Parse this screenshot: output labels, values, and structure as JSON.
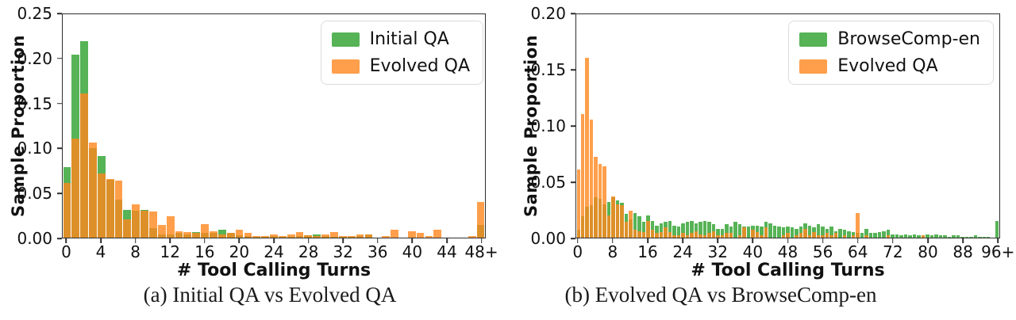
{
  "colors": {
    "green_series": "#2ca02c",
    "orange_series": "#ff7f0e",
    "green_css": "rgba(44,160,44,0.8)",
    "orange_css": "rgba(255,135,30,0.8)",
    "spine": "#2e2e2e",
    "background": "#ffffff"
  },
  "chart_data": [
    {
      "id": "chart-a",
      "type": "bar",
      "subtype": "overlaid-histogram",
      "caption": "(a) Initial QA vs Evolved QA",
      "xlabel": "# Tool Calling Turns",
      "ylabel": "Sample Proportion",
      "ylim": [
        0,
        0.25
      ],
      "grid": false,
      "legend_position": "upper right",
      "yticks": [
        {
          "v": 0.0,
          "label": "0.00"
        },
        {
          "v": 0.05,
          "label": "0.05"
        },
        {
          "v": 0.1,
          "label": "0.10"
        },
        {
          "v": 0.15,
          "label": "0.15"
        },
        {
          "v": 0.2,
          "label": "0.20"
        },
        {
          "v": 0.25,
          "label": "0.25"
        }
      ],
      "xticks": [
        {
          "v": 0,
          "label": "0"
        },
        {
          "v": 4,
          "label": "4"
        },
        {
          "v": 8,
          "label": "8"
        },
        {
          "v": 12,
          "label": "12"
        },
        {
          "v": 16,
          "label": "16"
        },
        {
          "v": 20,
          "label": "20"
        },
        {
          "v": 24,
          "label": "24"
        },
        {
          "v": 28,
          "label": "28"
        },
        {
          "v": 32,
          "label": "32"
        },
        {
          "v": 36,
          "label": "36"
        },
        {
          "v": 40,
          "label": "40"
        },
        {
          "v": 44,
          "label": "44"
        },
        {
          "v": 48,
          "label": "48+"
        }
      ],
      "bin_start": 0,
      "bin_width": 1,
      "series": [
        {
          "name": "Initial QA",
          "color": "#2ca02c",
          "css": "rgba(44,160,44,0.8)",
          "values": [
            0.079,
            0.205,
            0.22,
            0.1,
            0.091,
            0.065,
            0.043,
            0.031,
            0.03,
            0.031,
            0.011,
            0.004,
            0.004,
            0.005,
            0.004,
            0.006,
            0.005,
            0.005,
            0.009,
            0.005,
            0.003,
            0.002,
            0.001,
            0.001,
            0.002,
            0.001,
            0.001,
            0.002,
            0.003,
            0.004,
            0.002,
            0.001,
            0.001,
            0.001,
            0.002,
            0.004,
            0,
            0,
            0,
            0,
            0,
            0,
            0,
            0,
            0,
            0,
            0,
            0,
            0.014
          ]
        },
        {
          "name": "Evolved QA",
          "color": "#ff7f0e",
          "css": "rgba(255,135,30,0.8)",
          "values": [
            0.061,
            0.111,
            0.161,
            0.106,
            0.072,
            0.066,
            0.064,
            0.02,
            0.037,
            0.03,
            0.029,
            0.014,
            0.024,
            0.007,
            0.006,
            0.005,
            0.015,
            0.007,
            0.004,
            0.005,
            0.009,
            0.005,
            0.002,
            0.002,
            0.004,
            0.002,
            0.004,
            0.006,
            0.003,
            0.002,
            0.004,
            0.006,
            0.002,
            0.002,
            0.004,
            0.004,
            0,
            0.002,
            0.009,
            0,
            0.007,
            0.005,
            0.002,
            0.009,
            0,
            0,
            0,
            0.002,
            0.04
          ]
        }
      ]
    },
    {
      "id": "chart-b",
      "type": "bar",
      "subtype": "overlaid-histogram",
      "caption": "(b) Evolved QA vs BrowseComp-en",
      "xlabel": "# Tool Calling Turns",
      "ylabel": "Sample Proportion",
      "ylim": [
        0,
        0.2
      ],
      "grid": false,
      "legend_position": "upper right",
      "yticks": [
        {
          "v": 0.0,
          "label": "0.00"
        },
        {
          "v": 0.05,
          "label": "0.05"
        },
        {
          "v": 0.1,
          "label": "0.10"
        },
        {
          "v": 0.15,
          "label": "0.15"
        },
        {
          "v": 0.2,
          "label": "0.20"
        }
      ],
      "xticks": [
        {
          "v": 0,
          "label": "0"
        },
        {
          "v": 8,
          "label": "8"
        },
        {
          "v": 16,
          "label": "16"
        },
        {
          "v": 24,
          "label": "24"
        },
        {
          "v": 32,
          "label": "32"
        },
        {
          "v": 40,
          "label": "40"
        },
        {
          "v": 48,
          "label": "48"
        },
        {
          "v": 56,
          "label": "56"
        },
        {
          "v": 64,
          "label": "64"
        },
        {
          "v": 72,
          "label": "72"
        },
        {
          "v": 80,
          "label": "80"
        },
        {
          "v": 88,
          "label": "88"
        },
        {
          "v": 96,
          "label": "96+"
        }
      ],
      "bin_start": 0,
      "bin_width": 1,
      "series": [
        {
          "name": "BrowseComp-en",
          "color": "#2ca02c",
          "css": "rgba(44,160,44,0.8)",
          "values": [
            0.007,
            0.019,
            0.028,
            0.029,
            0.036,
            0.035,
            0.03,
            0.032,
            0.036,
            0.033,
            0.031,
            0.021,
            0.016,
            0.022,
            0.019,
            0.014,
            0.02,
            0.015,
            0.011,
            0.013,
            0.014,
            0.015,
            0.011,
            0.01,
            0.013,
            0.014,
            0.015,
            0.013,
            0.014,
            0.015,
            0.014,
            0.012,
            0.008,
            0.008,
            0.012,
            0.01,
            0.014,
            0.012,
            0.01,
            0.01,
            0.011,
            0.011,
            0.01,
            0.014,
            0.013,
            0.011,
            0.01,
            0.009,
            0.01,
            0.009,
            0.008,
            0.01,
            0.013,
            0.011,
            0.009,
            0.012,
            0.01,
            0.008,
            0.01,
            0.006,
            0.008,
            0.007,
            0.006,
            0.005,
            0.004,
            0.004,
            0.008,
            0.004,
            0.004,
            0.005,
            0.006,
            0.007,
            0.003,
            0.003,
            0.002,
            0.003,
            0.002,
            0.003,
            0.002,
            0.002,
            0.003,
            0.002,
            0.003,
            0.002,
            0.002,
            0.001,
            0.002,
            0.002,
            0.001,
            0.001,
            0.001,
            0.002,
            0.001,
            0.001,
            0.001,
            0,
            0.015
          ]
        },
        {
          "name": "Evolved QA",
          "color": "#ff7f0e",
          "css": "rgba(255,135,30,0.8)",
          "values": [
            0.061,
            0.111,
            0.161,
            0.106,
            0.072,
            0.066,
            0.064,
            0.02,
            0.037,
            0.03,
            0.029,
            0.014,
            0.024,
            0.007,
            0.006,
            0.005,
            0.015,
            0.007,
            0.004,
            0.005,
            0.009,
            0.005,
            0.002,
            0.002,
            0.004,
            0.002,
            0.004,
            0.006,
            0.003,
            0.002,
            0.004,
            0.006,
            0.002,
            0.002,
            0.004,
            0.004,
            0,
            0.002,
            0.009,
            0,
            0.007,
            0.005,
            0.002,
            0.009,
            0,
            0,
            0,
            0.002,
            0.004,
            0,
            0.002,
            0.004,
            0.008,
            0.002,
            0.005,
            0.002,
            0.002,
            0.004,
            0.002,
            0.004,
            0,
            0.002,
            0,
            0.002,
            0.022,
            0,
            0.002,
            0,
            0,
            0,
            0,
            0.002,
            0,
            0,
            0,
            0,
            0,
            0,
            0,
            0.002,
            0,
            0,
            0,
            0,
            0,
            0,
            0,
            0,
            0,
            0,
            0,
            0,
            0,
            0,
            0,
            0,
            0
          ]
        }
      ]
    }
  ]
}
